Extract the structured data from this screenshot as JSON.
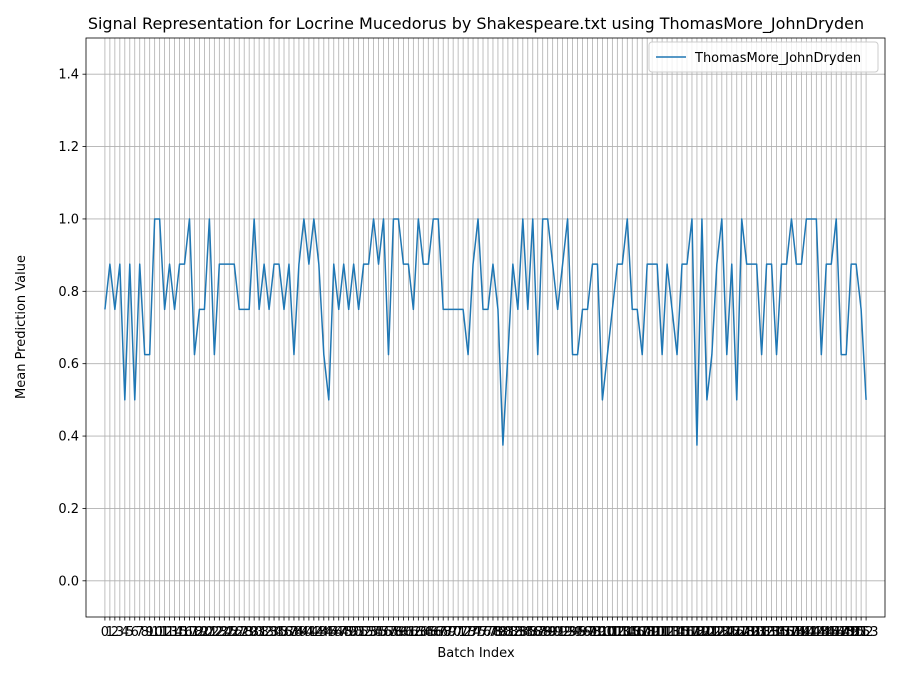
{
  "chart_data": {
    "type": "line",
    "title": "Signal Representation for Locrine Mucedorus by Shakespeare.txt using ThomasMore_JohnDryden",
    "xlabel": "Batch Index",
    "ylabel": "Mean Prediction Value",
    "xlim": [
      -3.8,
      156.8
    ],
    "ylim": [
      -0.1,
      1.5
    ],
    "yticks": [
      0.0,
      0.2,
      0.4,
      0.6,
      0.8,
      1.0,
      1.2,
      1.4
    ],
    "grid": true,
    "legend_position": "top-right",
    "series": [
      {
        "name": "ThomasMore_JohnDryden",
        "color": "#1f77b4",
        "values": [
          0.75,
          0.875,
          0.75,
          0.875,
          0.5,
          0.875,
          0.5,
          0.875,
          0.625,
          0.625,
          1.0,
          1.0,
          0.75,
          0.875,
          0.75,
          0.875,
          0.875,
          1.0,
          0.625,
          0.75,
          0.75,
          1.0,
          0.625,
          0.875,
          0.875,
          0.875,
          0.875,
          0.75,
          0.75,
          0.75,
          1.0,
          0.75,
          0.875,
          0.75,
          0.875,
          0.875,
          0.75,
          0.875,
          0.625,
          0.875,
          1.0,
          0.875,
          1.0,
          0.875,
          0.625,
          0.5,
          0.875,
          0.75,
          0.875,
          0.75,
          0.875,
          0.75,
          0.875,
          0.875,
          1.0,
          0.875,
          1.0,
          0.625,
          1.0,
          1.0,
          0.875,
          0.875,
          0.75,
          1.0,
          0.875,
          0.875,
          1.0,
          1.0,
          0.75,
          0.75,
          0.75,
          0.75,
          0.75,
          0.625,
          0.875,
          1.0,
          0.75,
          0.75,
          0.875,
          0.75,
          0.375,
          0.625,
          0.875,
          0.75,
          1.0,
          0.75,
          1.0,
          0.625,
          1.0,
          1.0,
          0.875,
          0.75,
          0.875,
          1.0,
          0.625,
          0.625,
          0.75,
          0.75,
          0.875,
          0.875,
          0.5,
          0.625,
          0.75,
          0.875,
          0.875,
          1.0,
          0.75,
          0.75,
          0.625,
          0.875,
          0.875,
          0.875,
          0.625,
          0.875,
          0.75,
          0.625,
          0.875,
          0.875,
          1.0,
          0.375,
          1.0,
          0.5,
          0.625,
          0.875,
          1.0,
          0.625,
          0.875,
          0.5,
          1.0,
          0.875,
          0.875,
          0.875,
          0.625,
          0.875,
          0.875,
          0.625,
          0.875,
          0.875,
          1.0,
          0.875,
          0.875,
          1.0,
          1.0,
          1.0,
          0.625,
          0.875,
          0.875,
          1.0,
          0.625,
          0.625,
          0.875,
          0.875,
          0.75,
          0.5
        ]
      }
    ]
  }
}
